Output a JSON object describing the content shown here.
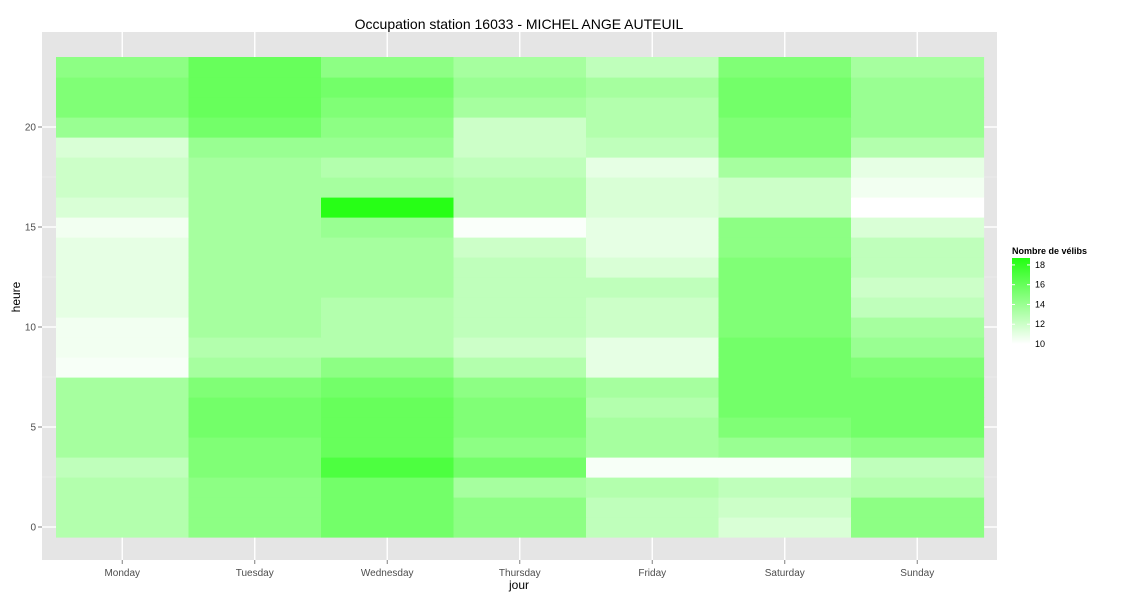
{
  "chart_data": {
    "type": "heatmap",
    "title": "Occupation station 16033 - MICHEL ANGE AUTEUIL",
    "xlabel": "jour",
    "ylabel": "heure",
    "x_categories": [
      "Monday",
      "Tuesday",
      "Wednesday",
      "Thursday",
      "Friday",
      "Saturday",
      "Sunday"
    ],
    "y_values": [
      0,
      1,
      2,
      3,
      4,
      5,
      6,
      7,
      8,
      9,
      10,
      11,
      12,
      13,
      14,
      15,
      16,
      17,
      18,
      19,
      20,
      21,
      22,
      23
    ],
    "y_ticks": [
      0,
      5,
      10,
      15,
      20
    ],
    "ylim": [
      -0.5,
      23.5
    ],
    "grid": true,
    "values": [
      [
        13.0,
        14.5,
        15.5,
        14.5,
        12.5,
        11.5,
        14.5
      ],
      [
        13.0,
        14.5,
        15.5,
        14.5,
        12.5,
        12.0,
        14.5
      ],
      [
        13.0,
        14.5,
        15.5,
        13.5,
        13.0,
        12.5,
        13.0
      ],
      [
        12.5,
        15.0,
        17.0,
        15.5,
        10.3,
        10.3,
        12.5
      ],
      [
        13.5,
        15.0,
        16.0,
        14.5,
        13.5,
        14.0,
        14.5
      ],
      [
        13.5,
        15.5,
        16.0,
        15.0,
        13.5,
        15.0,
        15.5
      ],
      [
        13.5,
        15.5,
        16.0,
        15.0,
        13.0,
        15.5,
        15.5
      ],
      [
        13.5,
        15.0,
        15.5,
        14.5,
        13.5,
        15.5,
        15.5
      ],
      [
        10.3,
        13.5,
        14.5,
        13.0,
        11.0,
        15.5,
        15.0
      ],
      [
        10.5,
        13.0,
        13.0,
        12.0,
        11.0,
        15.5,
        14.0
      ],
      [
        10.5,
        13.5,
        13.0,
        12.5,
        12.0,
        15.0,
        13.5
      ],
      [
        11.0,
        13.5,
        13.0,
        12.5,
        12.0,
        15.0,
        12.5
      ],
      [
        11.0,
        13.5,
        13.5,
        12.5,
        12.5,
        15.0,
        12.0
      ],
      [
        11.0,
        13.5,
        13.5,
        12.5,
        11.5,
        15.0,
        12.5
      ],
      [
        11.0,
        13.5,
        13.5,
        12.0,
        11.0,
        14.5,
        12.5
      ],
      [
        10.5,
        13.5,
        14.0,
        10.2,
        11.0,
        14.5,
        11.5
      ],
      [
        11.5,
        13.5,
        18.5,
        13.0,
        11.5,
        12.0,
        10.0
      ],
      [
        12.0,
        13.5,
        13.5,
        13.0,
        11.5,
        12.0,
        10.5
      ],
      [
        12.0,
        13.5,
        13.0,
        12.5,
        11.0,
        13.5,
        11.0
      ],
      [
        11.5,
        14.0,
        14.0,
        12.0,
        12.5,
        15.0,
        13.0
      ],
      [
        14.0,
        15.5,
        14.5,
        12.0,
        13.0,
        15.0,
        14.0
      ],
      [
        15.0,
        16.0,
        15.0,
        13.5,
        13.0,
        15.5,
        14.0
      ],
      [
        15.0,
        16.0,
        15.5,
        14.0,
        13.5,
        15.5,
        14.0
      ],
      [
        14.5,
        16.0,
        14.5,
        13.5,
        12.5,
        15.0,
        13.5
      ]
    ],
    "legend": {
      "title": "Nombre de vélibs",
      "labels": [
        "18",
        "16",
        "14",
        "12",
        "10"
      ],
      "ticks": [
        18,
        16,
        14,
        12,
        10
      ],
      "range": [
        10,
        18.7
      ],
      "placement": "right"
    },
    "colors": {
      "low": "#ffffff",
      "high": "#22ff11",
      "panel_background": "#e5e5e5",
      "grid": "#ffffff"
    }
  }
}
